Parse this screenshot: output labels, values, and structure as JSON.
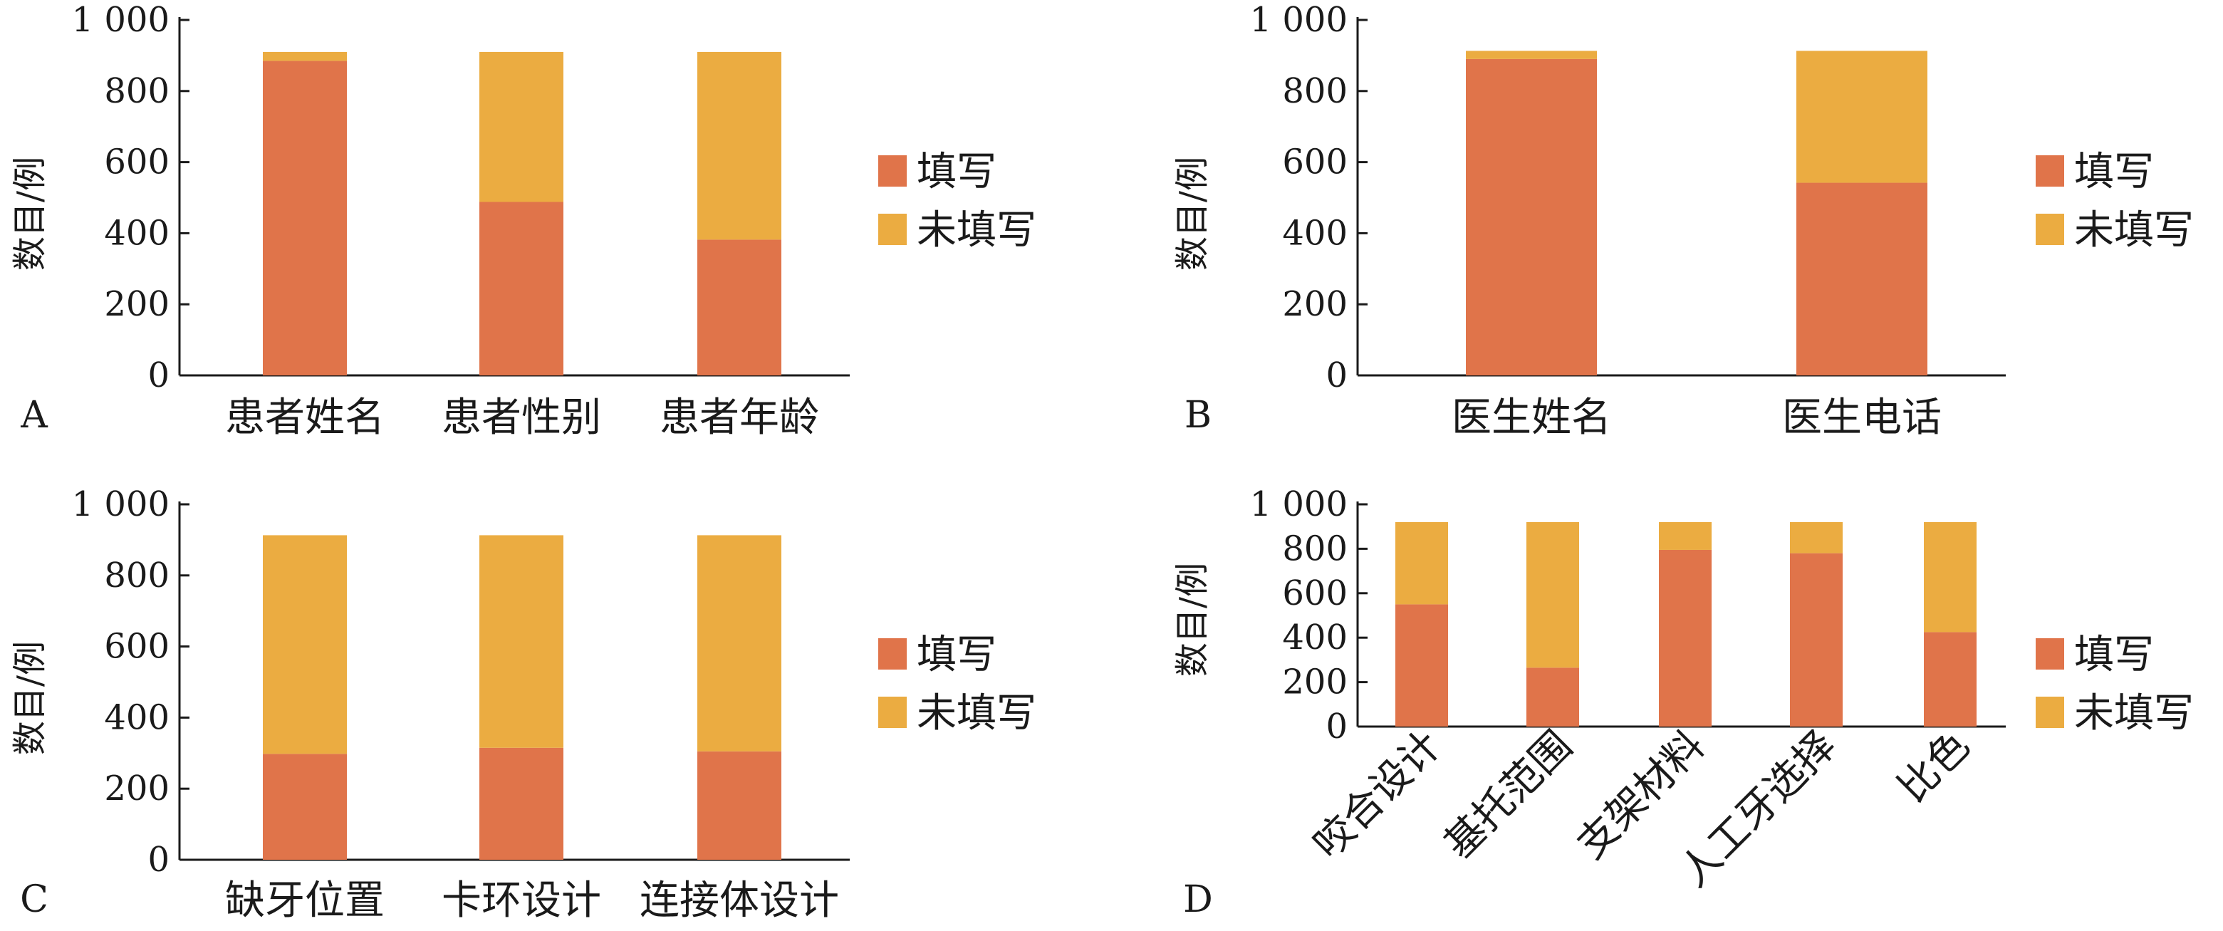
{
  "colors": {
    "filled": "#E0744A",
    "unfilled": "#EBAC41"
  },
  "chart_data": [
    {
      "panel": "A",
      "type": "bar",
      "stacked": true,
      "ylabel": "数目/例",
      "ylim": [
        0,
        1000
      ],
      "yticks": [
        "0",
        "200",
        "400",
        "600",
        "800",
        "1 000"
      ],
      "categories": [
        "患者姓名",
        "患者性别",
        "患者年龄"
      ],
      "series": [
        {
          "name": "填写",
          "values": [
            885,
            488,
            382
          ]
        },
        {
          "name": "未填写",
          "values": [
            25,
            422,
            528
          ]
        }
      ],
      "legend": "right"
    },
    {
      "panel": "B",
      "type": "bar",
      "stacked": true,
      "ylabel": "数目/例",
      "ylim": [
        0,
        1000
      ],
      "yticks": [
        "0",
        "200",
        "400",
        "600",
        "800",
        "1 000"
      ],
      "categories": [
        "医生姓名",
        "医生电话"
      ],
      "series": [
        {
          "name": "填写",
          "values": [
            890,
            542
          ]
        },
        {
          "name": "未填写",
          "values": [
            23,
            371
          ]
        }
      ],
      "legend": "right"
    },
    {
      "panel": "C",
      "type": "bar",
      "stacked": true,
      "ylabel": "数目/例",
      "ylim": [
        0,
        1000
      ],
      "yticks": [
        "0",
        "200",
        "400",
        "600",
        "800",
        "1 000"
      ],
      "categories": [
        "缺牙位置",
        "卡环设计",
        "连接体设计"
      ],
      "series": [
        {
          "name": "填写",
          "values": [
            298,
            315,
            305
          ]
        },
        {
          "name": "未填写",
          "values": [
            615,
            598,
            608
          ]
        }
      ],
      "legend": "right"
    },
    {
      "panel": "D",
      "type": "bar",
      "stacked": true,
      "ylabel": "数目/例",
      "ylim": [
        0,
        1000
      ],
      "yticks": [
        "0",
        "200",
        "400",
        "600",
        "800",
        "1 000"
      ],
      "categories": [
        "咬合设计",
        "基托范围",
        "支架材料",
        "人工牙选择",
        "比色"
      ],
      "series": [
        {
          "name": "填写",
          "values": [
            550,
            265,
            795,
            780,
            425
          ]
        },
        {
          "name": "未填写",
          "values": [
            370,
            655,
            125,
            140,
            495
          ]
        }
      ],
      "legend": "right"
    }
  ]
}
